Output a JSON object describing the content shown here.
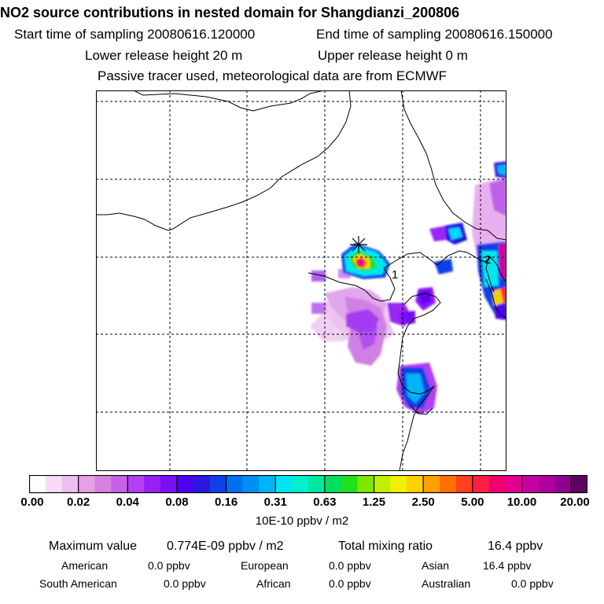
{
  "header": {
    "title": "NO2 source contributions in nested domain for Shangdianzi_200806",
    "start_label": "Start time of sampling 20080616.120000",
    "end_label": "End time of sampling 20080616.150000",
    "lower_label": "Lower release height   20 m",
    "upper_label": "Upper release height    0 m",
    "note": "Passive tracer used, meteorological data are from ECMWF"
  },
  "chart_data": {
    "type": "heatmap",
    "title": "NO2 source contributions in nested domain for Shangdianzi_200806",
    "colorbar": {
      "labels": [
        "0.00",
        "0.02",
        "0.04",
        "0.08",
        "0.16",
        "0.31",
        "0.63",
        "1.25",
        "2.50",
        "5.00",
        "10.00",
        "20.00"
      ],
      "unit": "10E-10 ppbv / m2",
      "colors": [
        "#ffffff",
        "#f6dcf6",
        "#eebeee",
        "#e6a0e6",
        "#d880e0",
        "#c860e8",
        "#b040f0",
        "#9a20f4",
        "#7a10f8",
        "#5000f0",
        "#2a18e0",
        "#1040e8",
        "#0070f0",
        "#0090f4",
        "#00b4f6",
        "#00e6f0",
        "#00f0d0",
        "#00e8a0",
        "#00e060",
        "#20e020",
        "#80e800",
        "#c0f000",
        "#f0f000",
        "#ffd000",
        "#ffa000",
        "#ff7000",
        "#ff4020",
        "#ff2040",
        "#f00070",
        "#e00090",
        "#c800a0",
        "#b000a0",
        "#900090",
        "#600060"
      ],
      "label_positions": [
        0,
        3,
        6,
        9,
        12,
        15,
        18,
        21,
        24,
        27,
        30,
        33
      ]
    },
    "markers": [
      {
        "label": "1"
      },
      {
        "label": "2"
      }
    ]
  },
  "footer": {
    "max_label": "Maximum value",
    "max_value": "0.774E-09 ppbv / m2",
    "total_label": "Total mixing ratio",
    "total_value": "16.4 ppbv",
    "regions": [
      {
        "name": "American",
        "value": "0.0 ppbv"
      },
      {
        "name": "European",
        "value": "0.0 ppbv"
      },
      {
        "name": "Asian",
        "value": "16.4 ppbv"
      },
      {
        "name": "South American",
        "value": "0.0 ppbv"
      },
      {
        "name": "African",
        "value": "0.0 ppbv"
      },
      {
        "name": "Australian",
        "value": "0.0 ppbv"
      }
    ]
  }
}
